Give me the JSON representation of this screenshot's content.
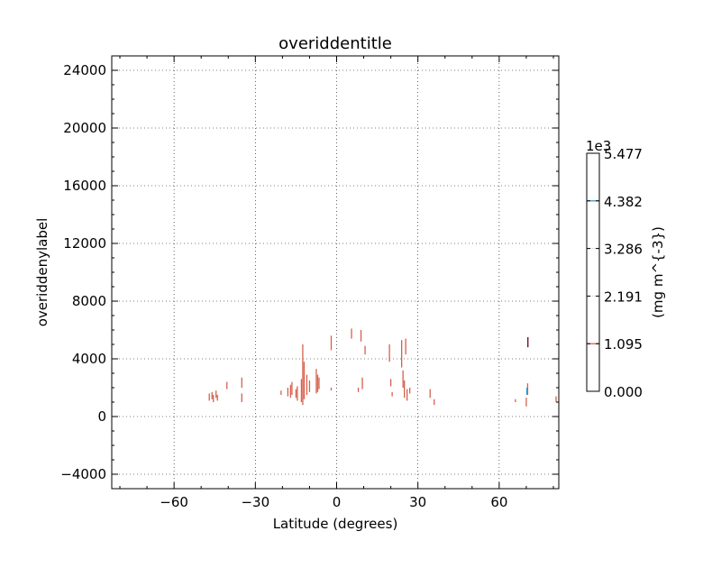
{
  "chart_data": {
    "type": "contour",
    "title": "overiddentitle",
    "xlabel": "Latitude (degrees)",
    "ylabel": "overiddenylabel",
    "xlim": [
      -83,
      82
    ],
    "ylim": [
      -5000,
      25000
    ],
    "xticks": [
      -60,
      -30,
      0,
      30,
      60
    ],
    "xtick_labels": [
      "−60",
      "−30",
      "0",
      "30",
      "60"
    ],
    "yticks": [
      -4000,
      0,
      4000,
      8000,
      12000,
      16000,
      20000,
      24000
    ],
    "ytick_labels": [
      "−4000",
      "0",
      "4000",
      "8000",
      "12000",
      "16000",
      "20000",
      "24000"
    ],
    "grid": true,
    "series": [
      {
        "color": "#d6604d",
        "segments": [
          {
            "x": -47.0,
            "y0": 1100,
            "y1": 1600
          },
          {
            "x": -46.0,
            "y0": 1200,
            "y1": 1700
          },
          {
            "x": -45.5,
            "y0": 1000,
            "y1": 1500
          },
          {
            "x": -44.5,
            "y0": 1300,
            "y1": 1800
          },
          {
            "x": -44.0,
            "y0": 1100,
            "y1": 1500
          },
          {
            "x": -40.5,
            "y0": 1900,
            "y1": 2400
          },
          {
            "x": -35.0,
            "y0": 1000,
            "y1": 1600
          },
          {
            "x": -35.0,
            "y0": 2000,
            "y1": 2700
          },
          {
            "x": -20.5,
            "y0": 1500,
            "y1": 1800
          },
          {
            "x": -18.0,
            "y0": 1400,
            "y1": 2000
          },
          {
            "x": -17.0,
            "y0": 1300,
            "y1": 2200
          },
          {
            "x": -16.5,
            "y0": 1500,
            "y1": 2400
          },
          {
            "x": -15.0,
            "y0": 1300,
            "y1": 1900
          },
          {
            "x": -14.5,
            "y0": 1100,
            "y1": 2100
          },
          {
            "x": -13.0,
            "y0": 1000,
            "y1": 2600
          },
          {
            "x": -12.5,
            "y0": 800,
            "y1": 5000
          },
          {
            "x": -12.0,
            "y0": 1200,
            "y1": 3800
          },
          {
            "x": -11.0,
            "y0": 1500,
            "y1": 2900
          },
          {
            "x": -10.0,
            "y0": 1700,
            "y1": 2500
          },
          {
            "x": -7.5,
            "y0": 1600,
            "y1": 3300
          },
          {
            "x": -7.0,
            "y0": 1700,
            "y1": 2900
          },
          {
            "x": -6.5,
            "y0": 1900,
            "y1": 2700
          },
          {
            "x": -2.0,
            "y0": 4600,
            "y1": 5600
          },
          {
            "x": -2.0,
            "y0": 1800,
            "y1": 2000
          },
          {
            "x": 5.5,
            "y0": 5400,
            "y1": 6100
          },
          {
            "x": 8.0,
            "y0": 1700,
            "y1": 2000
          },
          {
            "x": 9.0,
            "y0": 5200,
            "y1": 6000
          },
          {
            "x": 9.5,
            "y0": 1900,
            "y1": 2700
          },
          {
            "x": 10.5,
            "y0": 4300,
            "y1": 4900
          },
          {
            "x": 19.5,
            "y0": 3800,
            "y1": 5000
          },
          {
            "x": 20.0,
            "y0": 2100,
            "y1": 2600
          },
          {
            "x": 20.5,
            "y0": 1400,
            "y1": 1700
          },
          {
            "x": 24.0,
            "y0": 3400,
            "y1": 5300
          },
          {
            "x": 24.5,
            "y0": 2000,
            "y1": 3200
          },
          {
            "x": 25.0,
            "y0": 1300,
            "y1": 2500
          },
          {
            "x": 25.5,
            "y0": 4300,
            "y1": 5400
          },
          {
            "x": 26.0,
            "y0": 1100,
            "y1": 1900
          },
          {
            "x": 27.0,
            "y0": 1600,
            "y1": 2000
          },
          {
            "x": 34.5,
            "y0": 1300,
            "y1": 1900
          },
          {
            "x": 36.0,
            "y0": 800,
            "y1": 1200
          },
          {
            "x": 66.0,
            "y0": 1000,
            "y1": 1200
          },
          {
            "x": 70.0,
            "y0": 700,
            "y1": 1300
          },
          {
            "x": 70.5,
            "y0": 1500,
            "y1": 2300
          },
          {
            "x": 81.0,
            "y0": 1000,
            "y1": 1400
          }
        ]
      },
      {
        "color": "#4393c3",
        "segments": [
          {
            "x": 70.2,
            "y0": 1500,
            "y1": 2000
          }
        ]
      },
      {
        "color": "#67001f",
        "segments": [
          {
            "x": 70.6,
            "y0": 4800,
            "y1": 5500
          }
        ]
      }
    ],
    "colorbar": {
      "label": "(mg m^{-3})",
      "multiplier": "1e3",
      "range": [
        0.0,
        5.477
      ],
      "ticks": [
        0.0,
        1.095,
        2.191,
        3.286,
        4.382,
        5.477
      ],
      "tick_labels": [
        "0.000",
        "1.095",
        "2.191",
        "3.286",
        "4.382",
        "5.477"
      ],
      "level_lines": [
        {
          "value": 1.095,
          "color": "#d6604d"
        },
        {
          "value": 2.191,
          "color": "#f4e0d8"
        },
        {
          "value": 3.286,
          "color": "#dde8ef"
        },
        {
          "value": 4.382,
          "color": "#4393c3"
        }
      ]
    }
  }
}
